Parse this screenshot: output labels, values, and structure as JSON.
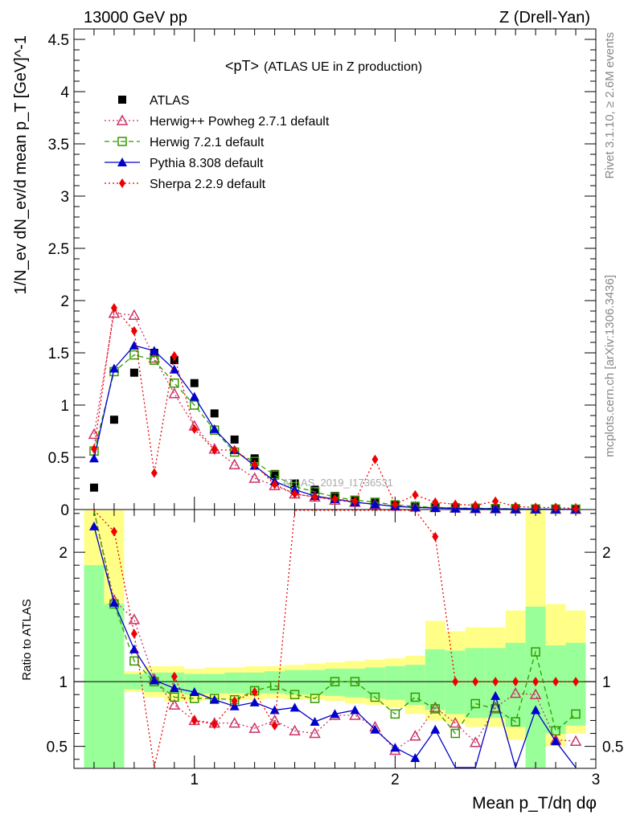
{
  "header": {
    "left": "13000 GeV pp",
    "right": "Z (Drell-Yan)"
  },
  "side": {
    "rivet": "Rivet 3.1.10, ≥ 2.6M events",
    "mcplots": "mcplots.cern.ch [arXiv:1306.3436]"
  },
  "watermark": "ATLAS_2019_I1736531",
  "chart_data": {
    "type": "scatter",
    "title": "<pT>",
    "subtitle": "(ATLAS UE in Z production)",
    "ylabel": "1/N_ev dN_ev/d mean p_T [GeV]^-1",
    "xlabel": "Mean p_T/dη dφ",
    "ratio_ylabel": "Ratio to ATLAS",
    "xlim": [
      0.4,
      3.0
    ],
    "ylim": [
      0,
      4.6
    ],
    "ratio_ylim": [
      0.33,
      2.33
    ],
    "x_ticks": [
      "1",
      "2",
      "3"
    ],
    "y_ticks": [
      "0",
      "0.5",
      "1",
      "1.5",
      "2",
      "2.5",
      "3",
      "3.5",
      "4",
      "4.5"
    ],
    "ratio_ticks": [
      "0.5",
      "1",
      "2"
    ],
    "bins": [
      0.5,
      0.6,
      0.7,
      0.8,
      0.9,
      1.0,
      1.1,
      1.2,
      1.3,
      1.4,
      1.5,
      1.6,
      1.7,
      1.8,
      1.9,
      2.0,
      2.1,
      2.2,
      2.3,
      2.4,
      2.5,
      2.6,
      2.7,
      2.8,
      2.9
    ],
    "series": [
      {
        "name": "ATLAS",
        "color": "#000000",
        "marker": "square-filled",
        "style": "none",
        "values": [
          0.21,
          0.86,
          1.31,
          1.5,
          1.43,
          1.21,
          0.92,
          0.67,
          0.49,
          0.34,
          0.25,
          0.19,
          0.13,
          0.09,
          0.065,
          0.05,
          0.036,
          0.025,
          0.02,
          0.015,
          0.013,
          0.01,
          0.008,
          0.007,
          0.005
        ]
      },
      {
        "name": "Herwig++ Powheg 2.7.1 default",
        "color": "#cc3366",
        "marker": "triangle-open",
        "style": "dotted",
        "values": [
          0.72,
          1.88,
          1.86,
          1.45,
          1.11,
          0.8,
          0.58,
          0.43,
          0.3,
          0.23,
          0.15,
          0.12,
          0.09,
          0.07,
          0.05,
          0.035,
          0.025,
          0.02,
          0.015,
          0.01,
          0.008,
          0.006,
          0.005,
          0.004,
          0.003
        ],
        "ratio": [
          3.4,
          1.63,
          1.48,
          1.02,
          0.82,
          0.7,
          0.68,
          0.68,
          0.64,
          0.7,
          0.62,
          0.6,
          0.74,
          0.74,
          0.65,
          0.47,
          0.58,
          0.8,
          0.68,
          0.53,
          0.8,
          0.91,
          0.9,
          0.55,
          0.54
        ]
      },
      {
        "name": "Herwig 7.2.1 default",
        "color": "#339900",
        "marker": "square-open",
        "style": "dashed",
        "values": [
          0.56,
          1.32,
          1.48,
          1.43,
          1.21,
          1.0,
          0.76,
          0.55,
          0.46,
          0.33,
          0.22,
          0.17,
          0.12,
          0.09,
          0.07,
          0.045,
          0.03,
          0.02,
          0.017,
          0.013,
          0.01,
          0.008,
          0.006,
          0.005,
          0.004
        ],
        "ratio": [
          2.67,
          1.6,
          1.16,
          1.0,
          0.88,
          0.87,
          0.87,
          0.86,
          0.93,
          0.97,
          0.9,
          0.87,
          1.0,
          1.0,
          0.88,
          0.75,
          0.88,
          0.79,
          0.6,
          0.83,
          0.79,
          0.69,
          1.23,
          0.62,
          0.75
        ]
      },
      {
        "name": "Pythia 8.308 default",
        "color": "#0000cc",
        "marker": "triangle-filled",
        "style": "solid",
        "values": [
          0.49,
          1.35,
          1.57,
          1.52,
          1.34,
          1.08,
          0.77,
          0.57,
          0.42,
          0.27,
          0.19,
          0.13,
          0.1,
          0.07,
          0.05,
          0.03,
          0.02,
          0.015,
          0.01,
          0.008,
          0.007,
          0.005,
          0.004,
          0.003,
          0.002
        ],
        "ratio": [
          2.2,
          1.61,
          1.25,
          1.01,
          0.95,
          0.92,
          0.86,
          0.81,
          0.84,
          0.78,
          0.8,
          0.69,
          0.75,
          0.78,
          0.63,
          0.49,
          0.41,
          0.63,
          0.28,
          0.22,
          0.89,
          0.28,
          0.78,
          0.54,
          0.2
        ]
      },
      {
        "name": "Sherpa 2.2.9 default",
        "color": "#ee0000",
        "marker": "diamond-filled",
        "style": "dotted",
        "values": [
          0.58,
          1.93,
          1.71,
          0.35,
          1.47,
          0.77,
          0.57,
          0.57,
          0.43,
          0.24,
          0.15,
          0.12,
          0.1,
          0.08,
          0.48,
          0.05,
          0.14,
          0.07,
          0.05,
          0.04,
          0.08,
          0.03,
          0.02,
          0.02,
          0.01
        ],
        "ratio": [
          2.76,
          2.16,
          1.37,
          0.23,
          1.04,
          0.7,
          0.67,
          0.85,
          0.92,
          0.66,
          3.0,
          3.0,
          3.0,
          3.0,
          3.0,
          3.0,
          3.0,
          2.12,
          1.0,
          1.0,
          1.0,
          1.0,
          1.0,
          1.0,
          1.0
        ]
      }
    ],
    "legend": [
      "ATLAS",
      "Herwig++ Powheg 2.7.1 default",
      "Herwig 7.2.1 default",
      "Pythia 8.308 default",
      "Sherpa 2.2.9 default"
    ],
    "band_yellow": [
      [
        0.33,
        2.33
      ],
      [
        0.33,
        2.33
      ],
      [
        0.92,
        1.08
      ],
      [
        0.88,
        1.12
      ],
      [
        0.85,
        1.12
      ],
      [
        0.85,
        1.1
      ],
      [
        0.86,
        1.11
      ],
      [
        0.86,
        1.11
      ],
      [
        0.86,
        1.12
      ],
      [
        0.87,
        1.12
      ],
      [
        0.86,
        1.13
      ],
      [
        0.86,
        1.14
      ],
      [
        0.85,
        1.15
      ],
      [
        0.83,
        1.16
      ],
      [
        0.82,
        1.17
      ],
      [
        0.8,
        1.18
      ],
      [
        0.75,
        1.2
      ],
      [
        0.7,
        1.47
      ],
      [
        0.68,
        1.39
      ],
      [
        0.65,
        1.42
      ],
      [
        0.65,
        1.42
      ],
      [
        0.55,
        1.55
      ],
      [
        0.33,
        2.33
      ],
      [
        0.5,
        1.6
      ],
      [
        0.6,
        1.55
      ]
    ],
    "band_green": [
      [
        0.33,
        1.9
      ],
      [
        0.33,
        1.6
      ],
      [
        0.94,
        1.06
      ],
      [
        0.92,
        1.07
      ],
      [
        0.91,
        1.07
      ],
      [
        0.9,
        1.06
      ],
      [
        0.91,
        1.06
      ],
      [
        0.91,
        1.07
      ],
      [
        0.91,
        1.07
      ],
      [
        0.91,
        1.08
      ],
      [
        0.9,
        1.09
      ],
      [
        0.9,
        1.09
      ],
      [
        0.89,
        1.1
      ],
      [
        0.88,
        1.1
      ],
      [
        0.87,
        1.11
      ],
      [
        0.86,
        1.12
      ],
      [
        0.82,
        1.13
      ],
      [
        0.78,
        1.25
      ],
      [
        0.75,
        1.24
      ],
      [
        0.72,
        1.26
      ],
      [
        0.72,
        1.26
      ],
      [
        0.65,
        1.3
      ],
      [
        0.33,
        1.58
      ],
      [
        0.6,
        1.28
      ],
      [
        0.66,
        1.3
      ]
    ]
  }
}
